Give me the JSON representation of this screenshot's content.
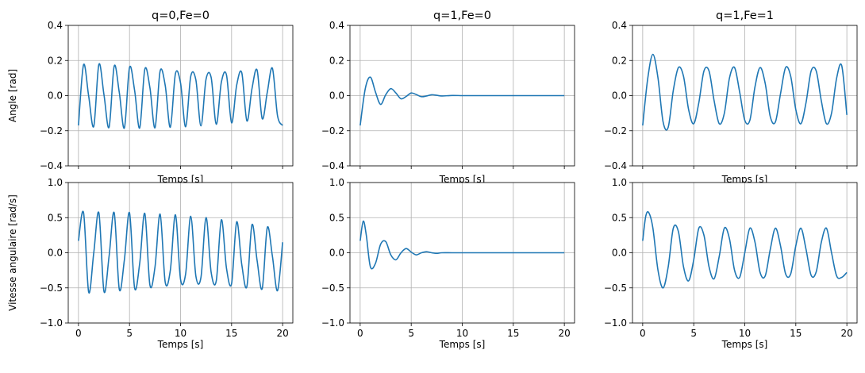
{
  "chart_data": {
    "type": "line",
    "layout": "2x3 subplots, shared x axis per column",
    "grid": true,
    "line_color": "#1f77b4",
    "grid_color": "#b0b0b0",
    "x_range": [
      0,
      20
    ],
    "x_ticks": [
      0,
      5,
      10,
      15,
      20
    ],
    "x_label": "Temps [s]",
    "rows": [
      {
        "quantity": "angle",
        "y_label": "Angle [rad]",
        "y_range": [
          -0.4,
          0.4
        ],
        "y_ticks": [
          -0.4,
          -0.2,
          0.0,
          0.2,
          0.4
        ],
        "y_tick_labels": [
          "−0.4",
          "−0.2",
          "0.0",
          "0.2",
          "0.4"
        ]
      },
      {
        "quantity": "angular_velocity",
        "y_label": "Vitesse angulaire [rad/s]",
        "y_range": [
          -1.0,
          1.0
        ],
        "y_ticks": [
          -1.0,
          -0.5,
          0.0,
          0.5,
          1.0
        ],
        "y_tick_labels": [
          "−1.0",
          "−0.5",
          "0.0",
          "0.5",
          "1.0"
        ]
      }
    ],
    "x_tick_labels": [
      "0",
      "5",
      "10",
      "15",
      "20"
    ],
    "columns": [
      {
        "title": "q=0,Fe=0",
        "angle": {
          "x": [
            0,
            0.5,
            1,
            1.5,
            2,
            2.5,
            3,
            3.5,
            4,
            4.5,
            5,
            5.5,
            6,
            6.5,
            7,
            7.5,
            8,
            8.5,
            9,
            9.5,
            10,
            10.5,
            11,
            11.5,
            12,
            12.5,
            13,
            13.5,
            14,
            14.5,
            15,
            15.5,
            16,
            16.5,
            17,
            17.5,
            18,
            18.5,
            19,
            19.5,
            20
          ],
          "y": [
            -0.17,
            0.176,
            -0.002,
            -0.175,
            0.178,
            0.005,
            -0.18,
            0.168,
            0.018,
            -0.184,
            0.16,
            0.03,
            -0.184,
            0.15,
            0.045,
            -0.183,
            0.14,
            0.058,
            -0.18,
            0.125,
            0.072,
            -0.177,
            0.11,
            0.09,
            -0.172,
            0.094,
            0.103,
            -0.163,
            0.077,
            0.118,
            -0.155,
            0.06,
            0.13,
            -0.144,
            0.04,
            0.145,
            -0.131,
            0.02,
            0.156,
            -0.114,
            -0.17
          ]
        },
        "velocity": {
          "x": [
            0,
            0.5,
            1,
            1.5,
            2,
            2.5,
            3,
            3.5,
            4,
            4.5,
            5,
            5.5,
            6,
            6.5,
            7,
            7.5,
            8,
            8.5,
            9,
            9.5,
            10,
            10.5,
            11,
            11.5,
            12,
            12.5,
            13,
            13.5,
            14,
            14.5,
            15,
            15.5,
            16,
            16.5,
            17,
            17.5,
            18,
            18.5,
            19,
            19.5,
            20
          ],
          "y": [
            0.17,
            0.57,
            -0.56,
            0.0,
            0.57,
            -0.55,
            -0.05,
            0.57,
            -0.52,
            -0.1,
            0.57,
            -0.5,
            -0.15,
            0.56,
            -0.46,
            -0.2,
            0.55,
            -0.42,
            -0.25,
            0.54,
            -0.38,
            -0.3,
            0.52,
            -0.33,
            -0.35,
            0.5,
            -0.28,
            -0.4,
            0.47,
            -0.22,
            -0.44,
            0.44,
            -0.17,
            -0.48,
            0.4,
            -0.11,
            -0.51,
            0.36,
            -0.05,
            -0.54,
            0.15
          ]
        }
      },
      {
        "title": "q=1,Fe=0",
        "angle": {
          "x": [
            0,
            0.5,
            1,
            1.5,
            2,
            2.5,
            3,
            3.5,
            4,
            4.5,
            5,
            5.5,
            6,
            6.5,
            7,
            7.5,
            8,
            9,
            10,
            11,
            12,
            13,
            14,
            15,
            16,
            17,
            18,
            19,
            20
          ],
          "y": [
            -0.17,
            0.04,
            0.105,
            0.02,
            -0.05,
            0.005,
            0.04,
            0.015,
            -0.018,
            -0.005,
            0.015,
            0.006,
            -0.006,
            -0.002,
            0.005,
            0.002,
            -0.002,
            0.001,
            0.0,
            0.0,
            0.0,
            0.0,
            0.0,
            0.0,
            0.0,
            0.0,
            0.0,
            0.0,
            0.0
          ]
        },
        "velocity": {
          "x": [
            0,
            0.3,
            0.6,
            1,
            1.5,
            2,
            2.5,
            3,
            3.5,
            4,
            4.5,
            5,
            5.5,
            6,
            6.5,
            7,
            7.5,
            8,
            9,
            10,
            11,
            12,
            13,
            14,
            15,
            16,
            17,
            18,
            19,
            20
          ],
          "y": [
            0.17,
            0.45,
            0.25,
            -0.2,
            -0.15,
            0.12,
            0.16,
            -0.03,
            -0.1,
            0.0,
            0.06,
            0.01,
            -0.03,
            0.0,
            0.015,
            0.0,
            -0.008,
            0.0,
            0.0,
            0.0,
            0.0,
            0.0,
            0.0,
            0.0,
            0.0,
            0.0,
            0.0,
            0.0,
            0.0,
            0.0
          ]
        }
      },
      {
        "title": "q=1,Fe=1",
        "angle": {
          "x": [
            0,
            0.5,
            1,
            1.5,
            2,
            2.5,
            3,
            3.5,
            4,
            4.5,
            5,
            5.5,
            6,
            6.5,
            7,
            7.5,
            8,
            8.5,
            9,
            9.5,
            10,
            10.5,
            11,
            11.5,
            12,
            12.5,
            13,
            13.5,
            14,
            14.5,
            15,
            15.5,
            16,
            16.5,
            17,
            17.5,
            18,
            18.5,
            19,
            19.5,
            20
          ],
          "y": [
            -0.17,
            0.1,
            0.235,
            0.1,
            -0.15,
            -0.18,
            0.03,
            0.16,
            0.11,
            -0.08,
            -0.16,
            -0.04,
            0.14,
            0.14,
            -0.03,
            -0.16,
            -0.1,
            0.1,
            0.16,
            0.02,
            -0.14,
            -0.14,
            0.05,
            0.16,
            0.07,
            -0.12,
            -0.15,
            0.01,
            0.16,
            0.11,
            -0.08,
            -0.16,
            -0.04,
            0.14,
            0.14,
            -0.03,
            -0.16,
            -0.1,
            0.1,
            0.17,
            -0.11
          ]
        },
        "velocity": {
          "x": [
            0,
            0.3,
            0.6,
            1,
            1.5,
            2,
            2.5,
            3,
            3.5,
            4,
            4.5,
            5,
            5.5,
            6,
            6.5,
            7,
            7.5,
            8,
            8.5,
            9,
            9.5,
            10,
            10.5,
            11,
            11.5,
            12,
            12.5,
            13,
            13.5,
            14,
            14.5,
            15,
            15.5,
            16,
            16.5,
            17,
            17.5,
            18,
            18.5,
            19,
            19.5,
            20
          ],
          "y": [
            0.17,
            0.52,
            0.57,
            0.35,
            -0.25,
            -0.5,
            -0.2,
            0.35,
            0.3,
            -0.2,
            -0.4,
            -0.1,
            0.35,
            0.25,
            -0.2,
            -0.37,
            -0.05,
            0.35,
            0.2,
            -0.25,
            -0.35,
            0.0,
            0.35,
            0.15,
            -0.28,
            -0.33,
            0.05,
            0.35,
            0.1,
            -0.3,
            -0.3,
            0.1,
            0.35,
            0.05,
            -0.32,
            -0.27,
            0.15,
            0.35,
            0.0,
            -0.33,
            -0.35,
            -0.28
          ]
        }
      }
    ]
  }
}
